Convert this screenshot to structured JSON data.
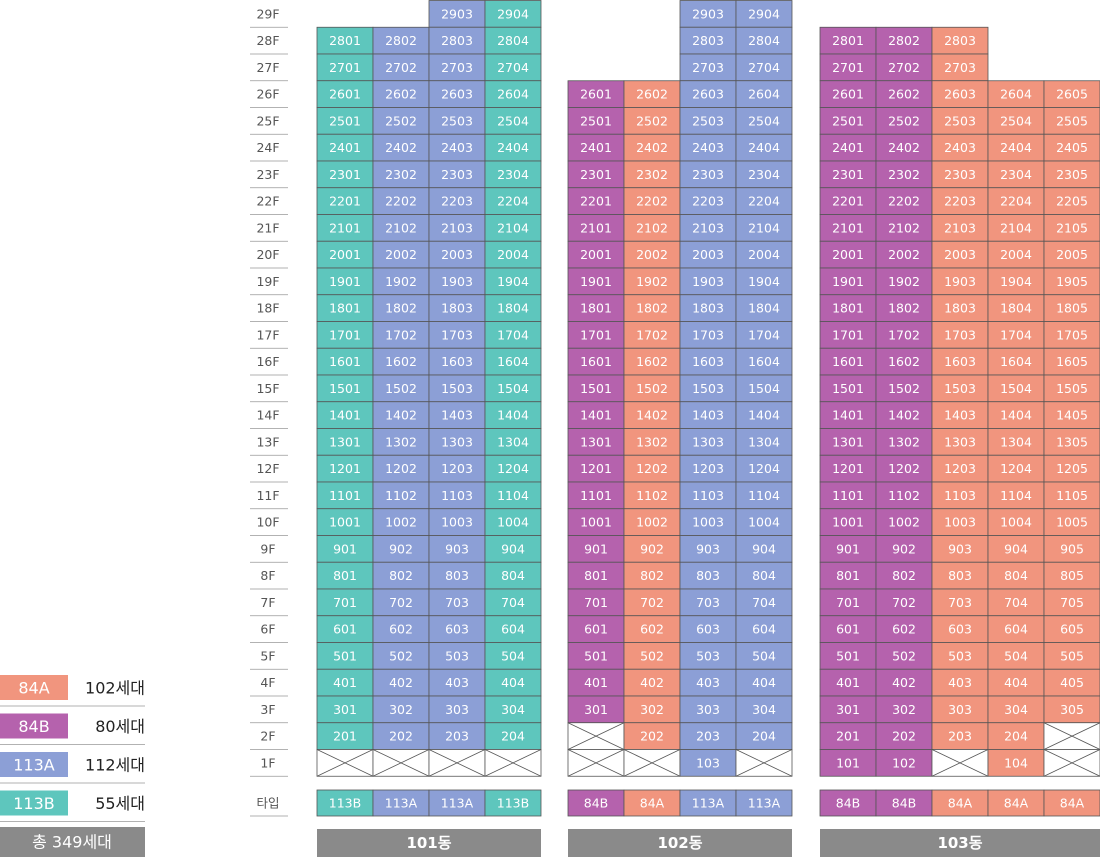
{
  "floors": [
    "29F",
    "28F",
    "27F",
    "26F",
    "25F",
    "24F",
    "23F",
    "22F",
    "21F",
    "20F",
    "19F",
    "18F",
    "17F",
    "16F",
    "15F",
    "14F",
    "13F",
    "12F",
    "11F",
    "10F",
    "9F",
    "8F",
    "7F",
    "6F",
    "5F",
    "4F",
    "3F",
    "2F",
    "1F"
  ],
  "type_label": "타입",
  "legend": [
    {
      "type": "84A",
      "count": "102세대",
      "color": "#f1957e"
    },
    {
      "type": "84B",
      "count": "80세대",
      "color": "#b562ad"
    },
    {
      "type": "113A",
      "count": "112세대",
      "color": "#8c9fd6"
    },
    {
      "type": "113B",
      "count": "55세대",
      "color": "#5ec6bd"
    }
  ],
  "total": "총 349세대",
  "buildings": [
    {
      "name": "101동",
      "columns": [
        {
          "type": "113B",
          "units": [
            2801,
            2701,
            2601,
            2501,
            2401,
            2301,
            2201,
            2101,
            2001,
            1901,
            1801,
            1701,
            1601,
            1501,
            1401,
            1301,
            1201,
            1101,
            1001,
            901,
            801,
            701,
            601,
            501,
            401,
            301,
            201,
            null
          ]
        },
        {
          "type": "113A",
          "units": [
            2802,
            2702,
            2602,
            2502,
            2402,
            2302,
            2202,
            2102,
            2002,
            1902,
            1802,
            1702,
            1602,
            1502,
            1402,
            1302,
            1202,
            1102,
            1002,
            902,
            802,
            702,
            602,
            502,
            402,
            302,
            202,
            null
          ]
        },
        {
          "type": "113A",
          "units": [
            2903,
            2803,
            2703,
            2603,
            2503,
            2403,
            2303,
            2203,
            2103,
            2003,
            1903,
            1803,
            1703,
            1603,
            1503,
            1403,
            1303,
            1203,
            1103,
            1003,
            903,
            803,
            703,
            603,
            503,
            403,
            303,
            203,
            null
          ]
        },
        {
          "type": "113B",
          "units": [
            2904,
            2804,
            2704,
            2604,
            2504,
            2404,
            2304,
            2204,
            2104,
            2004,
            1904,
            1804,
            1704,
            1604,
            1504,
            1404,
            1304,
            1204,
            1104,
            1004,
            904,
            804,
            704,
            604,
            504,
            404,
            304,
            204,
            null
          ]
        }
      ]
    },
    {
      "name": "102동",
      "columns": [
        {
          "type": "84B",
          "units": [
            2601,
            2501,
            2401,
            2301,
            2201,
            2101,
            2001,
            1901,
            1801,
            1701,
            1601,
            1501,
            1401,
            1301,
            1201,
            1101,
            1001,
            901,
            801,
            701,
            601,
            501,
            401,
            301,
            null,
            null
          ]
        },
        {
          "type": "84A",
          "units": [
            2602,
            2502,
            2402,
            2302,
            2202,
            2102,
            2002,
            1902,
            1802,
            1702,
            1602,
            1502,
            1402,
            1302,
            1202,
            1102,
            1002,
            902,
            802,
            702,
            602,
            502,
            402,
            302,
            202,
            null
          ]
        },
        {
          "type": "113A",
          "units": [
            2903,
            2803,
            2703,
            2603,
            2503,
            2403,
            2303,
            2203,
            2103,
            2003,
            1903,
            1803,
            1703,
            1603,
            1503,
            1403,
            1303,
            1203,
            1103,
            1003,
            903,
            803,
            703,
            603,
            503,
            403,
            303,
            203,
            103
          ]
        },
        {
          "type": "113A",
          "units": [
            2904,
            2804,
            2704,
            2604,
            2504,
            2404,
            2304,
            2204,
            2104,
            2004,
            1904,
            1804,
            1704,
            1604,
            1504,
            1404,
            1304,
            1204,
            1104,
            1004,
            904,
            804,
            704,
            604,
            504,
            404,
            304,
            204,
            null
          ]
        }
      ]
    },
    {
      "name": "103동",
      "columns": [
        {
          "type": "84B",
          "units": [
            2801,
            2701,
            2601,
            2501,
            2401,
            2301,
            2201,
            2101,
            2001,
            1901,
            1801,
            1701,
            1601,
            1501,
            1401,
            1301,
            1201,
            1101,
            1001,
            901,
            801,
            701,
            601,
            501,
            401,
            301,
            201,
            101
          ]
        },
        {
          "type": "84B",
          "units": [
            2802,
            2702,
            2602,
            2502,
            2402,
            2302,
            2202,
            2102,
            2002,
            1902,
            1802,
            1702,
            1602,
            1502,
            1402,
            1302,
            1202,
            1102,
            1002,
            902,
            802,
            702,
            602,
            502,
            402,
            302,
            202,
            102
          ]
        },
        {
          "type": "84A",
          "units": [
            2803,
            2703,
            2603,
            2503,
            2403,
            2303,
            2203,
            2103,
            2003,
            1903,
            1803,
            1703,
            1603,
            1503,
            1403,
            1303,
            1203,
            1103,
            1003,
            903,
            803,
            703,
            603,
            503,
            403,
            303,
            203,
            null
          ]
        },
        {
          "type": "84A",
          "units": [
            2604,
            2504,
            2404,
            2304,
            2204,
            2104,
            2004,
            1904,
            1804,
            1704,
            1604,
            1504,
            1404,
            1304,
            1204,
            1104,
            1004,
            904,
            804,
            704,
            604,
            504,
            404,
            304,
            204,
            104
          ]
        },
        {
          "type": "84A",
          "units": [
            2605,
            2505,
            2405,
            2305,
            2205,
            2105,
            2005,
            1905,
            1805,
            1705,
            1605,
            1505,
            1405,
            1305,
            1205,
            1105,
            1005,
            905,
            805,
            705,
            605,
            505,
            405,
            305,
            null,
            null
          ]
        }
      ]
    }
  ]
}
